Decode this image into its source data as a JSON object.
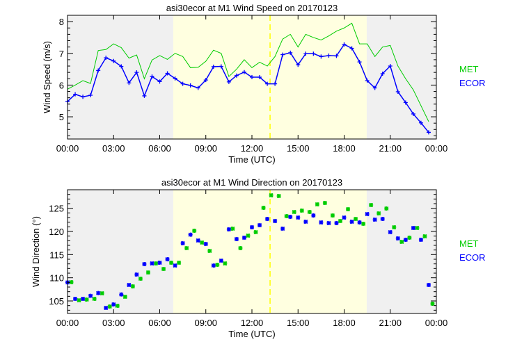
{
  "colors": {
    "met": "#00cc00",
    "ecor": "#0000ff",
    "night": "#f0f0f0",
    "day": "#ffffe0",
    "marker_line": "#ffff00"
  },
  "chart_data": [
    {
      "type": "line",
      "title": "asi30ecor at M1 Wind Speed on 20170123",
      "xlabel": "Time (UTC)",
      "ylabel": "Wind Speed (m/s)",
      "xlim": [
        0,
        24
      ],
      "ylim": [
        4.3,
        8.2
      ],
      "xticks": [
        "00:00",
        "03:00",
        "06:00",
        "09:00",
        "12:00",
        "15:00",
        "18:00",
        "21:00",
        "00:00"
      ],
      "yticks": [
        5,
        6,
        7,
        8
      ],
      "shading": [
        {
          "from": 0,
          "to": 6.88,
          "kind": "night"
        },
        {
          "from": 6.88,
          "to": 19.47,
          "kind": "day"
        },
        {
          "from": 19.47,
          "to": 24,
          "kind": "night"
        }
      ],
      "vline_hour": 13.18,
      "legend": [
        "MET",
        "ECOR"
      ],
      "legend_position": "right",
      "series": [
        {
          "name": "MET",
          "x_start": 0,
          "x_step": 0.5,
          "values": [
            5.87,
            6.0,
            6.14,
            6.05,
            7.09,
            7.12,
            7.3,
            7.18,
            6.85,
            6.95,
            6.2,
            6.79,
            6.93,
            6.81,
            7.0,
            6.9,
            6.55,
            6.56,
            6.75,
            7.1,
            7.0,
            6.27,
            6.5,
            6.8,
            6.55,
            6.72,
            6.6,
            6.9,
            7.45,
            7.6,
            7.2,
            7.6,
            7.5,
            7.42,
            7.55,
            7.7,
            7.8,
            7.95,
            7.3,
            7.3,
            6.9,
            7.2,
            7.25,
            6.6,
            6.2,
            5.85,
            5.35,
            4.85
          ]
        },
        {
          "name": "ECOR",
          "x_start": 0,
          "x_step": 0.5,
          "marker": "plus",
          "values": [
            5.48,
            5.71,
            5.63,
            5.68,
            6.46,
            6.86,
            6.76,
            6.59,
            6.07,
            6.4,
            5.66,
            6.27,
            6.11,
            6.37,
            6.21,
            6.04,
            5.99,
            5.91,
            6.16,
            6.58,
            6.59,
            6.1,
            6.3,
            6.41,
            6.25,
            6.25,
            6.04,
            6.04,
            6.96,
            7.02,
            6.64,
            6.99,
            6.99,
            6.9,
            6.93,
            6.92,
            7.28,
            7.16,
            6.73,
            6.14,
            5.91,
            6.36,
            6.6,
            5.79,
            5.45,
            5.09,
            4.81,
            4.51
          ]
        }
      ]
    },
    {
      "type": "scatter",
      "title": "asi30ecor at M1 Wind Direction on 20170123",
      "xlabel": "Time (UTC)",
      "ylabel": "Wind Direction (°)",
      "xlim": [
        0,
        24
      ],
      "ylim": [
        102.3,
        129
      ],
      "xticks": [
        "00:00",
        "03:00",
        "06:00",
        "09:00",
        "12:00",
        "15:00",
        "18:00",
        "21:00",
        "00:00"
      ],
      "yticks": [
        105,
        110,
        115,
        120,
        125
      ],
      "shading": [
        {
          "from": 0,
          "to": 6.88,
          "kind": "night"
        },
        {
          "from": 6.88,
          "to": 19.47,
          "kind": "day"
        },
        {
          "from": 19.47,
          "to": 24,
          "kind": "night"
        }
      ],
      "vline_hour": 13.18,
      "legend": [
        "MET",
        "ECOR"
      ],
      "legend_position": "right",
      "series": [
        {
          "name": "MET",
          "x_start": 0.25,
          "x_step": 0.5,
          "values": [
            109.05,
            105.15,
            105.3,
            105.45,
            106.65,
            103.8,
            103.95,
            105.9,
            108.15,
            109.8,
            111.15,
            113.1,
            111.9,
            113.25,
            113.25,
            116.4,
            120.15,
            117.6,
            115.8,
            112.8,
            113.1,
            120.6,
            116.4,
            119.1,
            119.85,
            125.1,
            127.8,
            127.65,
            123.3,
            124.2,
            124.5,
            124.2,
            125.85,
            126.15,
            123.45,
            122.25,
            124.8,
            122.7,
            121.65,
            125.7,
            123.9,
            124.95,
            120.9,
            117.75,
            118.65,
            120.75,
            118.95,
            104.4
          ]
        },
        {
          "name": "ECOR",
          "x_start": 0,
          "x_step": 0.5,
          "values": [
            109.0,
            105.45,
            105.45,
            106.1,
            106.7,
            103.5,
            104.25,
            106.4,
            108.45,
            110.7,
            112.95,
            113.1,
            113.25,
            114.0,
            112.65,
            117.45,
            119.3,
            118.05,
            117.3,
            112.65,
            113.7,
            120.45,
            118.35,
            118.65,
            120.9,
            121.35,
            122.7,
            122.25,
            120.6,
            123.15,
            123.0,
            122.1,
            123.45,
            121.95,
            121.8,
            121.8,
            123.0,
            122.1,
            121.95,
            123.75,
            122.55,
            122.7,
            119.85,
            118.5,
            118.2,
            120.75,
            118.2,
            108.45
          ]
        }
      ]
    }
  ]
}
